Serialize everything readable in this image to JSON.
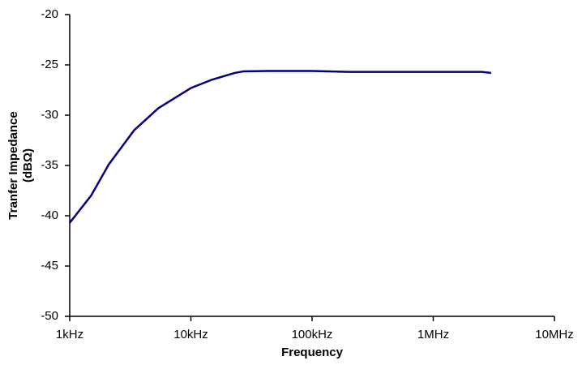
{
  "chart_data": {
    "type": "line",
    "log_x": true,
    "grid": false,
    "xlabel": "Frequency",
    "ylabel": [
      "Tranfer Impedance",
      "(dBΩ)"
    ],
    "x": [
      1000,
      1500,
      2100,
      3400,
      5400,
      10000,
      14700,
      23000,
      27000,
      43000,
      100000,
      200000,
      1000000,
      2500000,
      3000000
    ],
    "series": [
      {
        "color": "#000080",
        "values": [
          -40.7,
          -38.0,
          -34.9,
          -31.5,
          -29.3,
          -27.3,
          -26.5,
          -25.8,
          -25.65,
          -25.6,
          -25.6,
          -25.7,
          -25.7,
          -25.7,
          -25.8
        ]
      }
    ],
    "xlim": [
      1000,
      10000000
    ],
    "xticks": [
      {
        "value": 1000,
        "label": "1kHz"
      },
      {
        "value": 10000,
        "label": "10kHz"
      },
      {
        "value": 100000,
        "label": "100kHz"
      },
      {
        "value": 1000000,
        "label": "1MHz"
      },
      {
        "value": 10000000,
        "label": "10MHz"
      }
    ],
    "ylim": [
      -50,
      -20
    ],
    "yticks": [
      -50,
      -45,
      -40,
      -35,
      -30,
      -25,
      -20
    ]
  }
}
